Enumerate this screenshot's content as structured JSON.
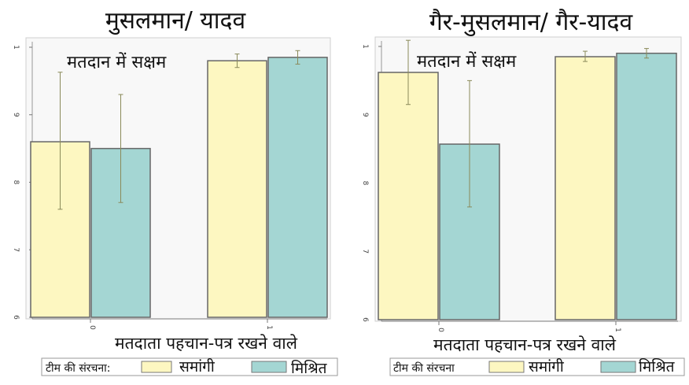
{
  "chart_data": [
    {
      "type": "bar",
      "title": "मुसलमान/ यादव",
      "annotation": "मतदान में सक्षम",
      "xlabel": "मतदाता पहचान-पत्र रखने वाले",
      "categories": [
        "0",
        "1"
      ],
      "series": [
        {
          "name": "समांगी",
          "values": [
            0.86,
            0.98
          ],
          "ci_low": [
            0.76,
            0.97
          ],
          "ci_high": [
            0.963,
            0.99
          ]
        },
        {
          "name": "मिश्रित",
          "values": [
            0.85,
            0.985
          ],
          "ci_low": [
            0.77,
            0.975
          ],
          "ci_high": [
            0.93,
            0.995
          ]
        }
      ],
      "ylim": [
        0.6,
        1.0
      ],
      "yticks": [
        "6",
        "7",
        "8",
        "9",
        "1"
      ],
      "ytick_values": [
        0.6,
        0.7,
        0.8,
        0.9,
        1.0
      ]
    },
    {
      "type": "bar",
      "title": "गैर-मुसलमान/ गैर-यादव",
      "annotation": "मतदान में सक्षम",
      "xlabel": "मतदाता पहचान-पत्र रखने वाले",
      "categories": [
        "0",
        "1"
      ],
      "series": [
        {
          "name": "समांगी",
          "values": [
            0.962,
            0.985
          ],
          "ci_low": [
            0.915,
            0.978
          ],
          "ci_high": [
            1.009,
            0.993
          ]
        },
        {
          "name": "मिश्रित",
          "values": [
            0.857,
            0.99
          ],
          "ci_low": [
            0.765,
            0.983
          ],
          "ci_high": [
            0.95,
            0.997
          ]
        }
      ],
      "ylim": [
        0.6,
        1.0
      ],
      "yticks": [
        "6",
        "7",
        "8",
        "9",
        "1"
      ],
      "ytick_values": [
        0.6,
        0.7,
        0.8,
        0.9,
        1.0
      ]
    }
  ],
  "legend": {
    "title": "टीम की संरचना:",
    "title_right": "टीम की संरचना",
    "items": [
      {
        "label": "समांगी",
        "color": "#fdf7c1"
      },
      {
        "label": "मिश्रित",
        "color": "#a4d6d3"
      }
    ]
  },
  "colors": {
    "homogeneous": "#fdf7c1",
    "mixed": "#a4d6d3",
    "panel_bg": "#f8f8f8",
    "outline": "#555555",
    "errorbar": "#8a8a5a"
  }
}
